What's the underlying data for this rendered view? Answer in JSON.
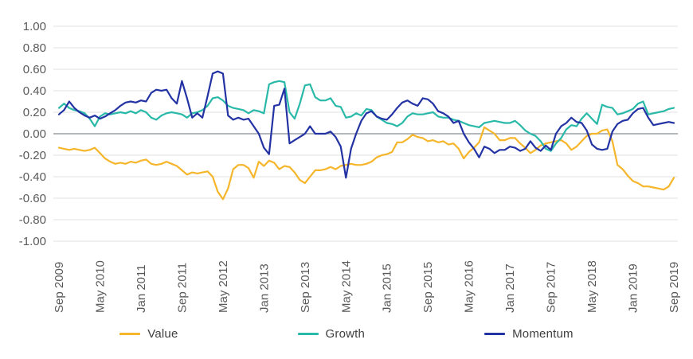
{
  "chart_data": {
    "type": "line",
    "title": "",
    "xlabel": "",
    "ylabel": "",
    "x_start": "Sep 2009",
    "x_end": "Sep 2019",
    "x_frequency": "monthly",
    "x_points": 121,
    "x_tick_every": 8,
    "x_tick_labels": [
      "Sep 2009",
      "May 2010",
      "Jan 2011",
      "Sep 2011",
      "May 2012",
      "Jan 2013",
      "Sep 2013",
      "May 2014",
      "Jan 2015",
      "Sep 2015",
      "May 2016",
      "Jan 2017",
      "Sep 2017",
      "May 2018",
      "Jan 2019",
      "Sep 2019"
    ],
    "ylim": [
      -1.0,
      1.0
    ],
    "y_tick_step": 0.2,
    "y_tick_labels": [
      "1.00",
      "0.80",
      "0.60",
      "0.40",
      "0.20",
      "0.00",
      "-0.20",
      "-0.40",
      "-0.60",
      "-0.80",
      "-1.00"
    ],
    "grid": true,
    "legend_position": "bottom",
    "series": [
      {
        "name": "Value",
        "color": "#F5B62B",
        "values": [
          -0.13,
          -0.14,
          -0.15,
          -0.14,
          -0.15,
          -0.16,
          -0.15,
          -0.13,
          -0.18,
          -0.23,
          -0.26,
          -0.28,
          -0.27,
          -0.28,
          -0.26,
          -0.27,
          -0.25,
          -0.24,
          -0.28,
          -0.29,
          -0.28,
          -0.26,
          -0.28,
          -0.3,
          -0.34,
          -0.38,
          -0.36,
          -0.37,
          -0.36,
          -0.35,
          -0.4,
          -0.54,
          -0.61,
          -0.51,
          -0.33,
          -0.29,
          -0.29,
          -0.32,
          -0.41,
          -0.26,
          -0.3,
          -0.25,
          -0.27,
          -0.33,
          -0.3,
          -0.31,
          -0.36,
          -0.43,
          -0.46,
          -0.4,
          -0.34,
          -0.34,
          -0.33,
          -0.31,
          -0.33,
          -0.3,
          -0.29,
          -0.28,
          -0.29,
          -0.29,
          -0.28,
          -0.26,
          -0.22,
          -0.2,
          -0.19,
          -0.17,
          -0.08,
          -0.08,
          -0.05,
          -0.01,
          -0.03,
          -0.04,
          -0.07,
          -0.06,
          -0.08,
          -0.07,
          -0.1,
          -0.09,
          -0.14,
          -0.23,
          -0.17,
          -0.13,
          -0.08,
          0.06,
          0.03,
          0.0,
          -0.06,
          -0.06,
          -0.04,
          -0.04,
          -0.09,
          -0.13,
          -0.18,
          -0.15,
          -0.11,
          -0.09,
          -0.08,
          -0.07,
          -0.06,
          -0.09,
          -0.15,
          -0.12,
          -0.07,
          -0.02,
          0.0,
          0.0,
          0.03,
          0.04,
          -0.07,
          -0.29,
          -0.33,
          -0.39,
          -0.44,
          -0.46,
          -0.49,
          -0.49,
          -0.5,
          -0.51,
          -0.52,
          -0.49,
          -0.41
        ]
      },
      {
        "name": "Growth",
        "color": "#29B9A8",
        "values": [
          0.24,
          0.28,
          0.24,
          0.22,
          0.21,
          0.19,
          0.14,
          0.07,
          0.16,
          0.19,
          0.18,
          0.19,
          0.2,
          0.19,
          0.21,
          0.19,
          0.22,
          0.2,
          0.15,
          0.13,
          0.17,
          0.19,
          0.2,
          0.19,
          0.18,
          0.15,
          0.19,
          0.2,
          0.22,
          0.26,
          0.33,
          0.34,
          0.31,
          0.26,
          0.24,
          0.23,
          0.22,
          0.19,
          0.22,
          0.21,
          0.19,
          0.46,
          0.48,
          0.49,
          0.48,
          0.2,
          0.14,
          0.28,
          0.45,
          0.46,
          0.34,
          0.31,
          0.31,
          0.33,
          0.26,
          0.25,
          0.15,
          0.16,
          0.19,
          0.17,
          0.23,
          0.22,
          0.16,
          0.13,
          0.1,
          0.09,
          0.07,
          0.1,
          0.16,
          0.19,
          0.18,
          0.18,
          0.19,
          0.2,
          0.16,
          0.15,
          0.15,
          0.13,
          0.12,
          0.1,
          0.08,
          0.07,
          0.06,
          0.1,
          0.11,
          0.12,
          0.11,
          0.1,
          0.1,
          0.12,
          0.08,
          0.03,
          0.0,
          -0.02,
          -0.07,
          -0.14,
          -0.16,
          -0.09,
          -0.04,
          0.04,
          0.08,
          0.07,
          0.14,
          0.19,
          0.14,
          0.09,
          0.27,
          0.25,
          0.24,
          0.18,
          0.19,
          0.21,
          0.23,
          0.28,
          0.3,
          0.18,
          0.19,
          0.2,
          0.21,
          0.23,
          0.24
        ]
      },
      {
        "name": "Momentum",
        "color": "#2433A4",
        "values": [
          0.18,
          0.22,
          0.3,
          0.24,
          0.2,
          0.17,
          0.15,
          0.17,
          0.14,
          0.16,
          0.19,
          0.22,
          0.26,
          0.29,
          0.3,
          0.29,
          0.31,
          0.3,
          0.38,
          0.41,
          0.4,
          0.41,
          0.33,
          0.28,
          0.49,
          0.33,
          0.15,
          0.19,
          0.15,
          0.35,
          0.56,
          0.58,
          0.56,
          0.17,
          0.13,
          0.15,
          0.13,
          0.14,
          0.07,
          0.0,
          -0.13,
          -0.19,
          0.26,
          0.27,
          0.42,
          -0.09,
          -0.06,
          -0.03,
          0.0,
          0.07,
          0.0,
          0.0,
          0.0,
          0.02,
          -0.03,
          -0.12,
          -0.41,
          -0.14,
          0.0,
          0.12,
          0.19,
          0.21,
          0.16,
          0.14,
          0.13,
          0.18,
          0.24,
          0.29,
          0.31,
          0.28,
          0.26,
          0.33,
          0.32,
          0.28,
          0.21,
          0.19,
          0.16,
          0.1,
          0.12,
          0.0,
          -0.08,
          -0.14,
          -0.22,
          -0.12,
          -0.14,
          -0.18,
          -0.15,
          -0.15,
          -0.12,
          -0.13,
          -0.16,
          -0.14,
          -0.07,
          -0.13,
          -0.16,
          -0.11,
          -0.15,
          0.0,
          0.07,
          0.1,
          0.15,
          0.11,
          0.1,
          0.03,
          -0.1,
          -0.14,
          -0.15,
          -0.14,
          0.02,
          0.09,
          0.12,
          0.13,
          0.19,
          0.23,
          0.24,
          0.15,
          0.08,
          0.09,
          0.1,
          0.11,
          0.1
        ]
      }
    ]
  },
  "style": {
    "background": "#ffffff",
    "grid_color": "#e0e0e0",
    "zero_line_color": "#9aa0a6",
    "axis_text_color": "#595959",
    "axis_font_size": 15,
    "line_width": 2.2
  },
  "legend": {
    "items": [
      "Value",
      "Growth",
      "Momentum"
    ]
  }
}
